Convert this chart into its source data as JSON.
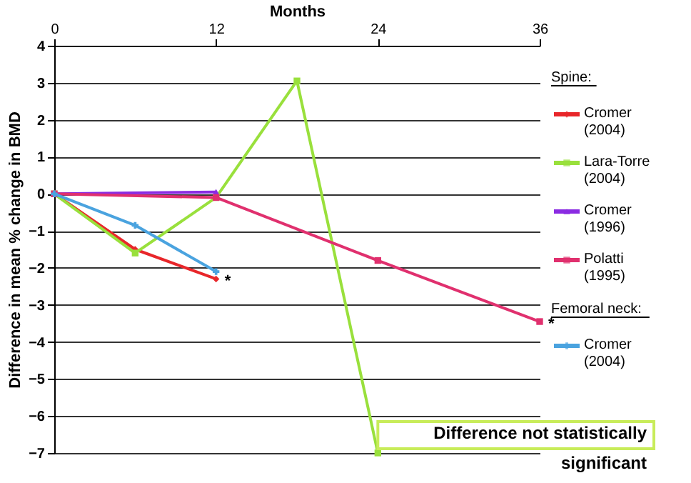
{
  "chart_data": {
    "type": "line",
    "xlabel": "Months",
    "ylabel": "Difference in mean % change in BMD",
    "xlim": [
      0,
      36
    ],
    "xticks": [
      0,
      12,
      24,
      36
    ],
    "ylim": [
      -7,
      4
    ],
    "yticks": [
      -7,
      -6,
      -5,
      -4,
      -3,
      -2,
      -1,
      0,
      1,
      2,
      3,
      4
    ],
    "grid": "y",
    "legend": "right",
    "series": [
      {
        "name": "Cromer (2004)",
        "color": "#e8262a",
        "marker": "diamond",
        "x": [
          0,
          6,
          12
        ],
        "values": [
          0,
          -1.5,
          -2.3
        ]
      },
      {
        "name": "Lara-Torre (2004)",
        "color": "#99e03c",
        "marker": "square",
        "x": [
          0,
          6,
          12,
          18,
          24
        ],
        "values": [
          0,
          -1.6,
          -0.1,
          3.05,
          -7
        ]
      },
      {
        "name": "Cromer (1996)",
        "color": "#8a2be2",
        "marker": "triangle",
        "x": [
          0,
          12
        ],
        "values": [
          0,
          0.05
        ]
      },
      {
        "name": "Polatti (1995)",
        "color": "#e0306e",
        "marker": "square",
        "x": [
          0,
          12,
          24,
          36
        ],
        "values": [
          0,
          -0.1,
          -1.8,
          -3.45
        ]
      },
      {
        "name": "Cromer (2004)",
        "color": "#4aa3df",
        "marker": "cross",
        "x": [
          0,
          6,
          12
        ],
        "values": [
          0,
          -0.85,
          -2.1
        ]
      }
    ],
    "annotations": [
      "Spine:",
      "Femoral neck:",
      {
        "text": "*",
        "x": 12,
        "y": -2.3
      },
      {
        "text": "*",
        "x": 36,
        "y": -3.45
      },
      "Difference not statistically significant"
    ]
  }
}
